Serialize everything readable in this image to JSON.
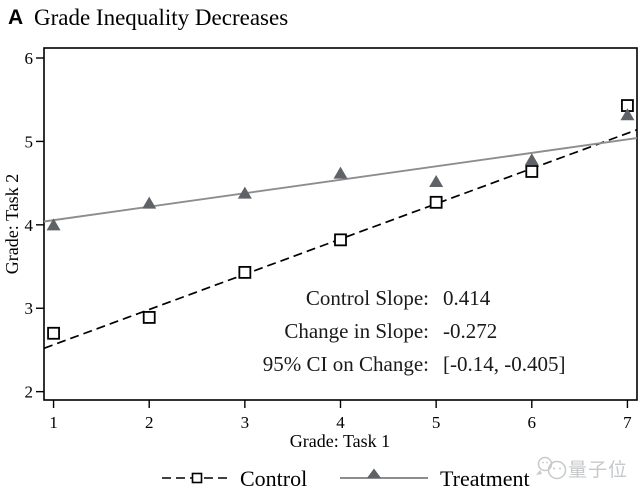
{
  "title": {
    "panel": "A",
    "text": "Grade Inequality Decreases"
  },
  "watermark": {
    "text": "量子位",
    "color": "#c6c8ca"
  },
  "colors": {
    "control": "#000000",
    "treatment_line": "#8d8d8d",
    "treatment_marker": "#5f6367",
    "background": "#ffffff"
  },
  "chart_data": {
    "type": "scatter",
    "title": "Grade Inequality Decreases",
    "xlabel": "Grade: Task 1",
    "ylabel": "Grade: Task 2",
    "x": [
      1,
      2,
      3,
      4,
      5,
      6,
      7
    ],
    "x_ticks": [
      1,
      2,
      3,
      4,
      5,
      6,
      7
    ],
    "y_ticks": [
      2,
      3,
      4,
      5,
      6
    ],
    "xlim": [
      0.9,
      7.1
    ],
    "ylim": [
      1.9,
      6.12
    ],
    "grid": "off",
    "series": [
      {
        "name": "Control",
        "marker": "square-hollow",
        "line": "dashed",
        "color": "#000000",
        "values": [
          2.7,
          2.89,
          3.43,
          3.82,
          4.27,
          4.64,
          5.43
        ],
        "fit_line": {
          "x1": 0.9,
          "y1": 2.52,
          "x2": 7.1,
          "y2": 5.14
        }
      },
      {
        "name": "Treatment",
        "marker": "triangle-filled",
        "line": "solid",
        "color": "#8d8d8d",
        "marker_color": "#5f6367",
        "values": [
          4.0,
          4.26,
          4.38,
          4.62,
          4.52,
          4.78,
          5.32
        ],
        "fit_line": {
          "x1": 0.9,
          "y1": 4.04,
          "x2": 7.1,
          "y2": 5.04
        }
      }
    ],
    "annotation": {
      "lines": [
        {
          "label": "Control Slope:",
          "value": "0.414"
        },
        {
          "label": "Change in Slope:",
          "value": "-0.272"
        },
        {
          "label": "95% CI on Change:",
          "value": "[-0.14, -0.405]"
        }
      ]
    },
    "legend": {
      "position": "bottom",
      "entries": [
        "Control",
        "Treatment"
      ]
    }
  }
}
